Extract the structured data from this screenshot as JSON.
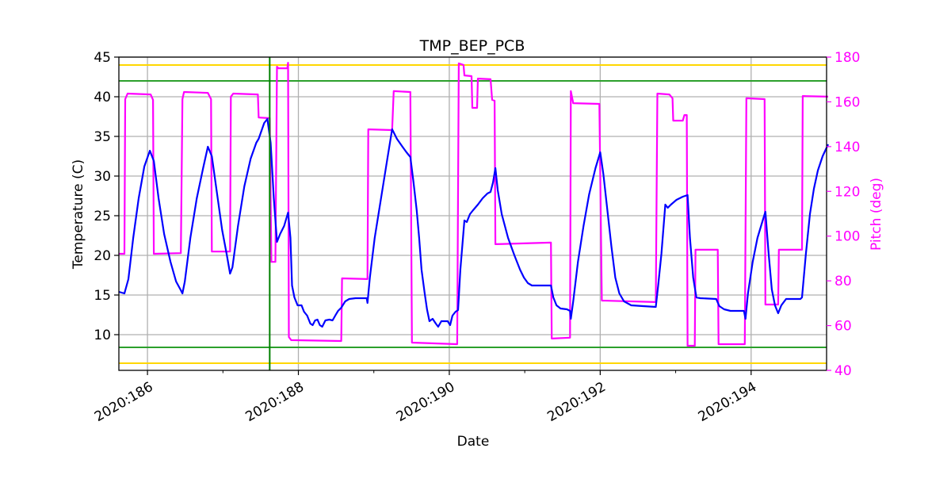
{
  "chart_data": {
    "type": "line",
    "title": "TMP_BEP_PCB",
    "xlabel": "Date",
    "ylabel": "Temperature (C)",
    "ylabel_right": "Pitch (deg)",
    "xlim": [
      185.621,
      195.0
    ],
    "ylim": [
      5.5,
      45
    ],
    "ylim_right": [
      40,
      180
    ],
    "x_ticks": [
      186,
      188,
      190,
      192,
      194
    ],
    "x_tick_labels": [
      "2020:186",
      "2020:188",
      "2020:190",
      "2020:192",
      "2020:194"
    ],
    "x_minor_ticks": [
      187,
      189,
      191,
      193
    ],
    "y_ticks": [
      10,
      15,
      20,
      25,
      30,
      35,
      40,
      45
    ],
    "y_tick_labels": [
      "10",
      "15",
      "20",
      "25",
      "30",
      "35",
      "40",
      "45"
    ],
    "y_ticks_right": [
      40,
      60,
      80,
      100,
      120,
      140,
      160,
      180
    ],
    "y_tick_labels_right": [
      "40",
      "60",
      "80",
      "100",
      "120",
      "140",
      "160",
      "180"
    ],
    "grid": true,
    "colors": {
      "temperature": "#0000ff",
      "pitch": "#ff00ff",
      "limit_yellow": "#ffd700",
      "limit_green": "#2ca02c",
      "vline": "#008000",
      "grid": "#b0b0b0",
      "right_axis": "#ff00ff"
    },
    "hlines": [
      {
        "y": 44.0,
        "color": "#ffd700"
      },
      {
        "y": 6.4,
        "color": "#ffd700"
      },
      {
        "y": 42.0,
        "color": "#2ca02c"
      },
      {
        "y": 8.4,
        "color": "#2ca02c"
      }
    ],
    "vlines": [
      {
        "x": 187.62,
        "color": "#008000"
      }
    ],
    "series": [
      {
        "axis": "left",
        "color": "#0000ff",
        "x": [
          185.621,
          185.695,
          185.747,
          185.811,
          185.884,
          185.958,
          186.032,
          186.084,
          186.147,
          186.221,
          186.305,
          186.379,
          186.442,
          186.463,
          186.495,
          186.568,
          186.653,
          186.737,
          186.8,
          186.853,
          186.916,
          186.989,
          187.053,
          187.095,
          187.126,
          187.2,
          187.284,
          187.368,
          187.442,
          187.474,
          187.547,
          187.589,
          187.632,
          187.674,
          187.716,
          187.758,
          187.811,
          187.863,
          187.895,
          187.916,
          187.947,
          187.989,
          188.042,
          188.074,
          188.116,
          188.158,
          188.189,
          188.221,
          188.253,
          188.284,
          188.316,
          188.358,
          188.411,
          188.453,
          188.495,
          188.526,
          188.568,
          188.621,
          188.674,
          188.758,
          188.905,
          188.916,
          188.947,
          189.011,
          189.095,
          189.179,
          189.242,
          189.305,
          189.379,
          189.432,
          189.484,
          189.526,
          189.568,
          189.6,
          189.632,
          189.674,
          189.705,
          189.737,
          189.779,
          189.821,
          189.853,
          189.895,
          189.979,
          190.011,
          190.042,
          190.084,
          190.116,
          190.147,
          190.2,
          190.232,
          190.274,
          190.316,
          190.379,
          190.442,
          190.505,
          190.547,
          190.579,
          190.611,
          190.642,
          190.695,
          190.779,
          190.863,
          190.937,
          190.989,
          191.042,
          191.095,
          191.347,
          191.379,
          191.421,
          191.474,
          191.558,
          191.6,
          191.611,
          191.642,
          191.705,
          191.779,
          191.853,
          191.937,
          192.0,
          192.042,
          192.095,
          192.147,
          192.2,
          192.253,
          192.316,
          192.411,
          192.568,
          192.737,
          192.768,
          192.811,
          192.863,
          192.895,
          192.937,
          193.011,
          193.095,
          193.158,
          193.189,
          193.232,
          193.274,
          193.326,
          193.537,
          193.579,
          193.642,
          193.726,
          193.905,
          193.926,
          193.958,
          194.021,
          194.084,
          194.147,
          194.189,
          194.232,
          194.274,
          194.316,
          194.358,
          194.4,
          194.463,
          194.568,
          194.653,
          194.674,
          194.726,
          194.779,
          194.832,
          194.884,
          194.947,
          195.021
        ],
        "y": [
          15.4,
          15.2,
          17.0,
          22.2,
          27.2,
          31.2,
          33.2,
          31.9,
          27.2,
          22.7,
          19.2,
          16.7,
          15.6,
          15.2,
          16.7,
          22.2,
          27.2,
          31.0,
          33.7,
          32.5,
          28.2,
          23.2,
          20.0,
          17.7,
          18.5,
          23.7,
          28.7,
          32.2,
          34.2,
          34.7,
          36.7,
          37.2,
          34.2,
          27.2,
          21.7,
          22.7,
          23.7,
          25.4,
          22.2,
          16.2,
          14.7,
          13.7,
          13.7,
          12.9,
          12.4,
          11.4,
          11.2,
          11.8,
          11.9,
          11.2,
          11.0,
          11.8,
          11.9,
          11.8,
          12.5,
          13.0,
          13.4,
          14.2,
          14.5,
          14.6,
          14.6,
          14.0,
          17.2,
          22.2,
          27.2,
          32.2,
          35.9,
          34.7,
          33.7,
          33.0,
          32.4,
          29.2,
          25.7,
          22.2,
          18.2,
          15.2,
          13.2,
          11.7,
          12.0,
          11.4,
          11.0,
          11.7,
          11.7,
          11.2,
          12.4,
          12.9,
          13.1,
          18.2,
          24.4,
          24.2,
          25.2,
          25.7,
          26.4,
          27.2,
          27.8,
          28.0,
          29.2,
          31.0,
          28.2,
          25.2,
          22.2,
          20.0,
          18.2,
          17.2,
          16.5,
          16.2,
          16.2,
          14.7,
          13.7,
          13.3,
          13.2,
          13.0,
          12.0,
          14.2,
          19.2,
          23.7,
          27.7,
          31.0,
          33.0,
          30.2,
          25.7,
          21.2,
          17.2,
          15.2,
          14.2,
          13.7,
          13.6,
          13.5,
          16.2,
          20.2,
          26.4,
          26.0,
          26.4,
          27.0,
          27.4,
          27.6,
          22.2,
          17.2,
          14.7,
          14.6,
          14.5,
          13.6,
          13.2,
          13.0,
          13.0,
          12.0,
          15.2,
          19.2,
          22.2,
          24.2,
          25.5,
          20.2,
          15.7,
          13.7,
          12.7,
          13.7,
          14.5,
          14.5,
          14.5,
          14.7,
          20.2,
          25.2,
          28.4,
          30.7,
          32.5,
          34.0
        ]
      },
      {
        "axis": "right",
        "color": "#ff00ff",
        "x": [
          185.621,
          185.695,
          185.705,
          185.737,
          186.042,
          186.074,
          186.084,
          186.442,
          186.463,
          186.484,
          186.8,
          186.842,
          186.853,
          187.095,
          187.105,
          187.137,
          187.463,
          187.474,
          187.621,
          187.642,
          187.695,
          187.716,
          187.737,
          187.853,
          187.863,
          187.874,
          187.905,
          188.568,
          188.579,
          188.916,
          188.926,
          189.242,
          189.263,
          189.484,
          189.505,
          190.105,
          190.126,
          190.189,
          190.2,
          190.295,
          190.305,
          190.368,
          190.379,
          190.547,
          190.568,
          190.6,
          190.611,
          191.347,
          191.358,
          191.6,
          191.611,
          191.642,
          191.989,
          192.021,
          192.737,
          192.758,
          192.916,
          192.958,
          192.968,
          193.095,
          193.116,
          193.147,
          193.158,
          193.253,
          193.263,
          193.558,
          193.568,
          193.916,
          193.937,
          194.179,
          194.189,
          194.358,
          194.368,
          194.674,
          194.684,
          195.021
        ],
        "y": [
          92.1,
          92.1,
          161.2,
          163.7,
          163.3,
          160.9,
          92.1,
          92.4,
          161.2,
          164.4,
          164.0,
          161.2,
          93.1,
          93.1,
          162.3,
          163.7,
          163.3,
          153.0,
          152.7,
          88.5,
          88.5,
          175.7,
          175.0,
          175.0,
          177.5,
          54.9,
          53.5,
          53.1,
          81.1,
          80.8,
          147.7,
          147.4,
          164.8,
          164.4,
          52.4,
          51.7,
          177.2,
          176.5,
          171.8,
          171.5,
          157.3,
          157.3,
          170.4,
          170.1,
          160.9,
          160.5,
          96.4,
          97.1,
          54.2,
          54.6,
          164.8,
          159.4,
          159.1,
          71.2,
          70.5,
          163.7,
          163.3,
          161.6,
          151.6,
          151.6,
          154.1,
          154.1,
          51.0,
          51.0,
          93.9,
          93.9,
          51.7,
          51.7,
          161.6,
          161.2,
          69.4,
          69.4,
          93.9,
          93.9,
          162.6,
          162.3
        ]
      }
    ]
  }
}
